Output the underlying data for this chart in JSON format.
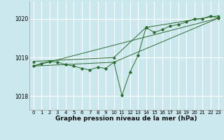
{
  "title": "Graphe pression niveau de la mer (hPa)",
  "bg_color": "#cce8ef",
  "grid_color": "#ffffff",
  "line_color": "#2d6b2d",
  "xlim": [
    -0.5,
    23.5
  ],
  "ylim": [
    1017.65,
    1020.45
  ],
  "yticks": [
    1018,
    1019,
    1020
  ],
  "xticks": [
    0,
    1,
    2,
    3,
    4,
    5,
    6,
    7,
    8,
    9,
    10,
    11,
    12,
    13,
    14,
    15,
    16,
    17,
    18,
    19,
    20,
    21,
    22,
    23
  ],
  "series_main": {
    "x": [
      0,
      1,
      2,
      3,
      4,
      5,
      6,
      7,
      8,
      9,
      10,
      11,
      12,
      13,
      14,
      15,
      16,
      17,
      18,
      19,
      20,
      21,
      22,
      23
    ],
    "y": [
      1018.78,
      1018.85,
      1018.9,
      1018.88,
      1018.82,
      1018.78,
      1018.72,
      1018.68,
      1018.75,
      1018.72,
      1018.88,
      1018.02,
      1018.62,
      1019.05,
      1019.78,
      1019.65,
      1019.72,
      1019.82,
      1019.85,
      1019.92,
      1020.0,
      1020.0,
      1020.08,
      1020.02
    ]
  },
  "series_trend1": {
    "x": [
      0,
      23
    ],
    "y": [
      1018.78,
      1020.02
    ]
  },
  "series_trend2": {
    "x": [
      0,
      10,
      23
    ],
    "y": [
      1018.78,
      1018.88,
      1020.02
    ]
  },
  "series_upper": {
    "x": [
      0,
      10,
      14,
      23
    ],
    "y": [
      1018.9,
      1019.0,
      1019.78,
      1020.08
    ]
  },
  "ylabel_fontsize": 5.5,
  "xlabel_fontsize": 6.5,
  "tick_fontsize": 5.0
}
